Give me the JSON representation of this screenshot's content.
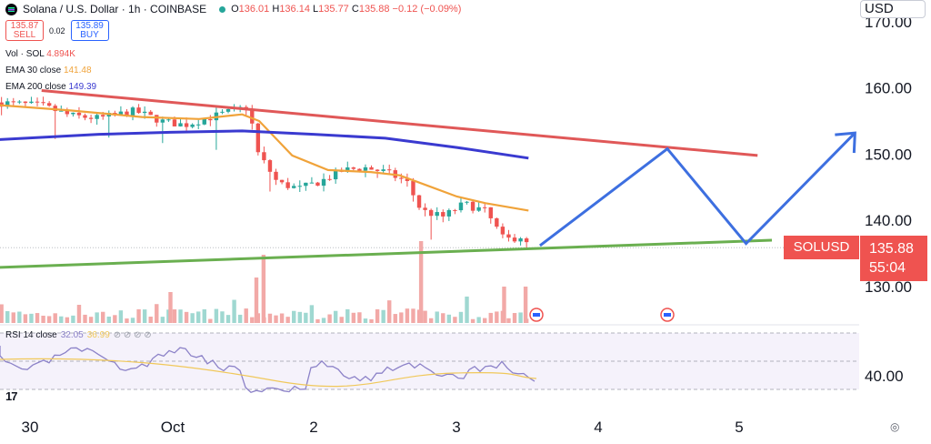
{
  "header": {
    "symbol_title": "Solana / U.S. Dollar · 1h · COINBASE",
    "o_label": "O",
    "o_value": "136.01",
    "h_label": "H",
    "h_value": "136.14",
    "l_label": "L",
    "l_value": "135.77",
    "c_label": "C",
    "c_value": "135.88",
    "change": "−0.12 (−0.09%)"
  },
  "trade": {
    "sell_price": "135.87",
    "sell_label": "SELL",
    "spread": "0.02",
    "buy_price": "135.89",
    "buy_label": "BUY"
  },
  "indicators": {
    "vol_label": "Vol · SOL",
    "vol_value": "4.894K",
    "ema30_label": "EMA 30 close",
    "ema30_value": "141.48",
    "ema200_label": "EMA 200 close",
    "ema200_value": "149.39",
    "rsi_label": "RSI 14 close",
    "rsi_value": "32.05",
    "rsi_ma_value": "36.99"
  },
  "currency_button": "USD",
  "symbol_tag": "SOLUSD",
  "last_price": "135.88",
  "countdown": "55:04",
  "logo_text": "17",
  "colors": {
    "up": "#26a69a",
    "down": "#ef5350",
    "ema30": "#f0a33a",
    "ema200": "#3a3ad0",
    "resistance": "#e05858",
    "support": "#6aaf50",
    "projection": "#3d6fe0",
    "rsi": "#8c82c8"
  },
  "chart_data": {
    "type": "candlestick",
    "yaxis": {
      "ticks": [
        130,
        140,
        150,
        160,
        170
      ],
      "tick_labels": [
        "130.00",
        "140.00",
        "150.00",
        "160.00",
        "170.00"
      ],
      "range": [
        125,
        171
      ]
    },
    "xaxis": {
      "tick_labels": [
        "30",
        "Oct",
        "2",
        "3",
        "4",
        "5"
      ]
    },
    "rsi_axis": {
      "tick_labels": [
        "40.00"
      ],
      "band": [
        30,
        70
      ]
    },
    "candles_summary": {
      "last": 135.88,
      "open": 136.01,
      "high": 136.14,
      "low": 135.77
    },
    "series": [
      {
        "name": "EMA 30 close",
        "last": 141.48
      },
      {
        "name": "EMA 200 close",
        "last": 149.39
      }
    ],
    "annotations": [
      {
        "type": "trendline",
        "role": "resistance",
        "from": [
          0.1,
          159.6
        ],
        "to": [
          5.1,
          149.8
        ]
      },
      {
        "type": "trendline",
        "role": "support",
        "from": [
          -0.2,
          132.9
        ],
        "to": [
          5.2,
          137.0
        ]
      },
      {
        "type": "projection",
        "points": [
          [
            3.58,
            136.2
          ],
          [
            4.47,
            150.8
          ],
          [
            5.02,
            136.5
          ],
          [
            5.78,
            153.2
          ]
        ]
      }
    ]
  }
}
